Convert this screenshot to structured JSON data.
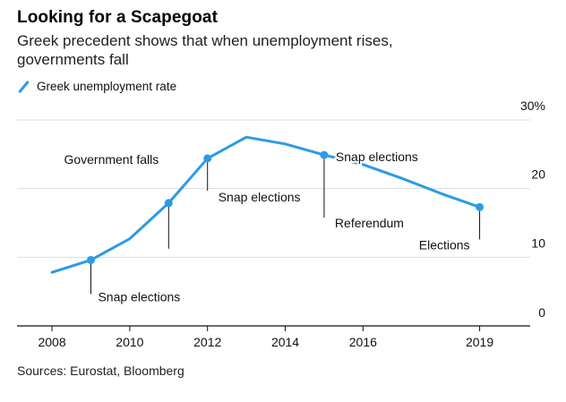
{
  "header": {
    "title": "Looking for a Scapegoat",
    "subtitle": "Greek precedent shows that when unemployment rises, governments fall"
  },
  "legend": {
    "label": "Greek unemployment rate"
  },
  "footer": {
    "source": "Sources: Eurostat, Bloomberg"
  },
  "colors": {
    "line": "#2c9be6",
    "grid": "#dddddd",
    "axis": "#111111",
    "annotation_line": "#111111"
  },
  "chart_data": {
    "type": "line",
    "x_ticks": [
      "2008",
      "2010",
      "2012",
      "2014",
      "2016",
      "2019"
    ],
    "x_tick_values": [
      2008,
      2010,
      2012,
      2014,
      2016,
      2019
    ],
    "y_ticks": [
      "0",
      "10",
      "20",
      "30%"
    ],
    "y_tick_values": [
      0,
      10,
      20,
      30
    ],
    "xlim": [
      2007.1,
      2020.3
    ],
    "ylim": [
      0,
      30
    ],
    "grid": true,
    "y_axis_side": "right",
    "legend_position": "top-left",
    "series": [
      {
        "name": "Greek unemployment rate",
        "x": [
          2008,
          2009,
          2010,
          2011,
          2012,
          2013,
          2014,
          2015,
          2016,
          2017,
          2018,
          2019
        ],
        "y": [
          7.8,
          9.6,
          12.7,
          17.9,
          24.4,
          27.5,
          26.5,
          24.9,
          23.5,
          21.5,
          19.3,
          17.3
        ]
      }
    ],
    "markers": [
      {
        "x": 2009,
        "y": 9.6
      },
      {
        "x": 2011,
        "y": 17.9
      },
      {
        "x": 2012,
        "y": 24.4
      },
      {
        "x": 2015,
        "y": 24.9
      },
      {
        "x": 2019,
        "y": 17.3
      }
    ],
    "annotations": [
      {
        "text": "Snap elections",
        "x": 2009,
        "y": 9.6,
        "direction": "down",
        "align": "right"
      },
      {
        "text": "Government falls",
        "x": 2011,
        "y": 17.9,
        "direction": "up",
        "align": "left"
      },
      {
        "text": "Snap elections",
        "x": 2012,
        "y": 24.4,
        "direction": "down",
        "align": "right"
      },
      {
        "text": "Snap elections",
        "x": 2015,
        "y": 24.9,
        "direction": "inline",
        "align": "right"
      },
      {
        "text": "Referendum",
        "x": 2015,
        "y": 24.9,
        "direction": "down",
        "align": "right"
      },
      {
        "text": "Elections",
        "x": 2019,
        "y": 17.3,
        "direction": "down",
        "align": "left"
      }
    ]
  }
}
